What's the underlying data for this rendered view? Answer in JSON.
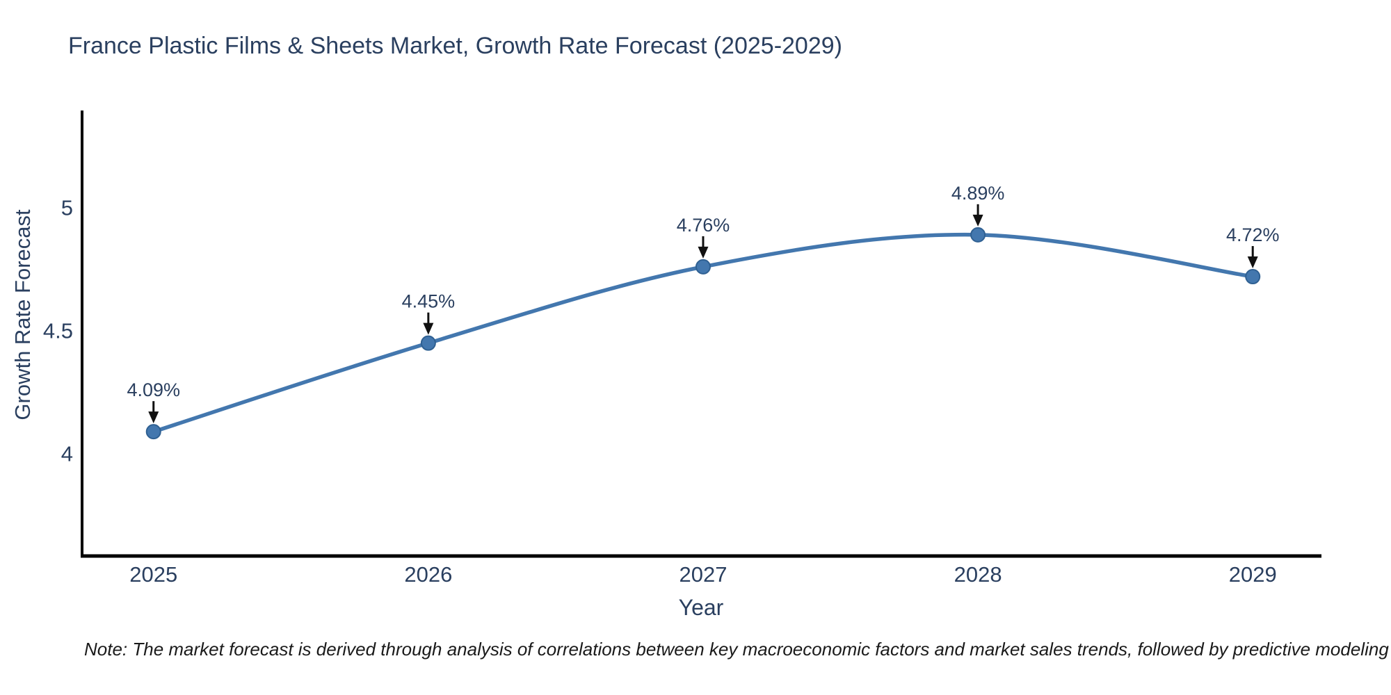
{
  "chart_data": {
    "type": "line",
    "title": "France Plastic Films & Sheets Market, Growth Rate Forecast (2025-2029)",
    "xlabel": "Year",
    "ylabel": "Growth Rate Forecast",
    "x": [
      2025,
      2026,
      2027,
      2028,
      2029
    ],
    "values": [
      4.09,
      4.45,
      4.76,
      4.89,
      4.72
    ],
    "point_labels": [
      "4.09%",
      "4.45%",
      "4.76%",
      "4.89%",
      "4.72%"
    ],
    "x_tick_labels": [
      "2025",
      "2026",
      "2027",
      "2028",
      "2029"
    ],
    "yticks": [
      4,
      4.5,
      5
    ],
    "ytick_labels": [
      "4",
      "4.5",
      "5"
    ],
    "xlim": [
      2024.74,
      2029.25
    ],
    "ylim": [
      3.585,
      5.395
    ],
    "grid": false,
    "line_shape": "spline",
    "legend": "none",
    "colors": {
      "line": "#4377ae",
      "marker_fill": "#4377ae",
      "marker_edge": "#2f6092",
      "axis": "#000000",
      "tick_text": "#2a3f5f",
      "annotation_text": "#2a3f5f",
      "arrow": "#111111"
    }
  },
  "note": "Note: The market forecast is derived through analysis of correlations between key macroeconomic factors and market sales trends, followed by predictive modeling to project future sales"
}
